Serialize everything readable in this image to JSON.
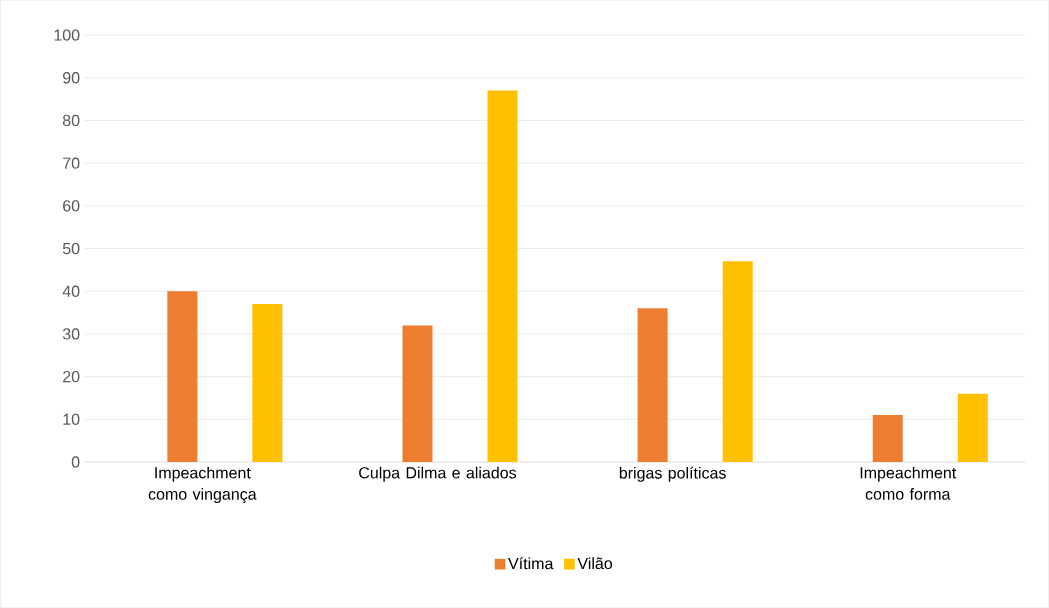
{
  "chart_data": {
    "type": "bar",
    "categories": [
      "Impeachment como vingança",
      "Culpa Dilma e aliados",
      "brigas políticas",
      "Impeachment como forma"
    ],
    "series": [
      {
        "name": "Vítima",
        "color": "#ed7d31",
        "values": [
          40,
          32,
          36,
          11
        ]
      },
      {
        "name": "Vilão",
        "color": "#ffc000",
        "values": [
          37,
          87,
          47,
          16
        ]
      }
    ],
    "ylim": [
      0,
      100
    ],
    "yticks": [
      0,
      10,
      20,
      30,
      40,
      50,
      60,
      70,
      80,
      90,
      100
    ],
    "grid": "y",
    "legend": "bottom"
  }
}
